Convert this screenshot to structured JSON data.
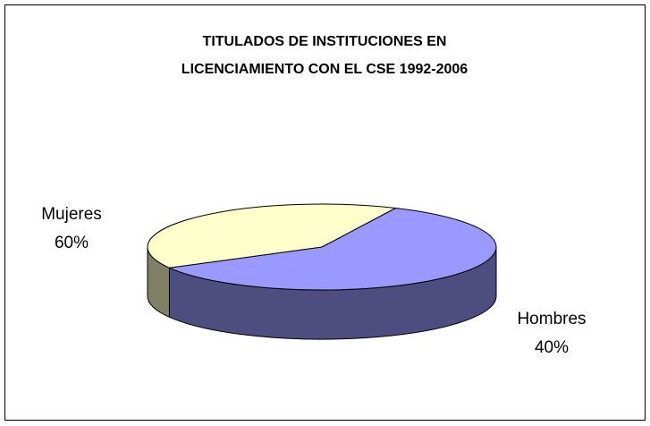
{
  "chart_data": {
    "type": "pie3d",
    "title": [
      "TITULADOS DE INSTITUCIONES EN",
      "LICENCIAMIENTO CON EL CSE 1992-2006"
    ],
    "categories": [
      "Mujeres",
      "Hombres"
    ],
    "values": [
      60,
      40
    ],
    "value_labels": [
      "60%",
      "40%"
    ],
    "colors": [
      "#9999ff",
      "#ffffcc"
    ],
    "side_colors": [
      "#4d4d80",
      "#808066"
    ]
  }
}
